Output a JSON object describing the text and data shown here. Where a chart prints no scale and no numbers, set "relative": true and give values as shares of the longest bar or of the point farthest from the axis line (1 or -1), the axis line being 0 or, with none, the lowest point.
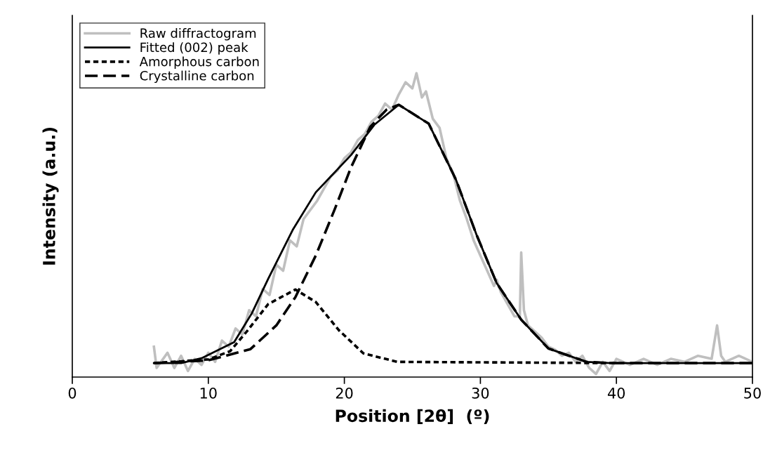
{
  "chart_data": {
    "type": "line",
    "relative": true,
    "xlabel": "Position [2θ]  (º)",
    "ylabel": "Intensity (a.u.)",
    "xlim": [
      0,
      50
    ],
    "xticks": [
      0,
      10,
      20,
      30,
      40,
      50
    ],
    "grid": false,
    "legend": "top left",
    "tick_labels": "x",
    "series": [
      {
        "name": "Raw diffractogram",
        "color": "#bfbfbf",
        "line_style": "solid",
        "x": [
          6,
          6.2,
          7,
          7.5,
          8,
          8.5,
          9,
          9.5,
          10,
          10.5,
          11,
          11.5,
          12,
          12.5,
          13,
          13.5,
          14,
          14.5,
          15,
          15.5,
          16,
          16.5,
          17,
          17.5,
          18,
          18.5,
          19,
          19.5,
          20,
          20.5,
          21,
          21.5,
          22,
          22.5,
          23,
          23.5,
          24,
          24.5,
          25,
          25.3,
          25.7,
          26,
          26.5,
          27,
          27.5,
          28,
          28.5,
          29,
          29.5,
          30,
          30.5,
          31,
          31.2,
          31.5,
          32,
          32.5,
          32.9,
          33.0,
          33.2,
          33.5,
          34,
          34.5,
          35,
          35.5,
          36,
          36.5,
          37,
          37.5,
          38,
          38.5,
          39,
          39.5,
          40,
          41,
          42,
          43,
          44,
          45,
          46,
          47,
          47.4,
          47.7,
          48,
          49,
          50
        ],
        "values": [
          0.1,
          0.03,
          0.08,
          0.03,
          0.07,
          0.02,
          0.06,
          0.04,
          0.08,
          0.05,
          0.12,
          0.1,
          0.16,
          0.14,
          0.22,
          0.2,
          0.29,
          0.27,
          0.37,
          0.35,
          0.45,
          0.43,
          0.52,
          0.55,
          0.58,
          0.62,
          0.66,
          0.68,
          0.72,
          0.74,
          0.78,
          0.8,
          0.84,
          0.86,
          0.9,
          0.88,
          0.93,
          0.97,
          0.95,
          1.0,
          0.92,
          0.94,
          0.85,
          0.82,
          0.72,
          0.67,
          0.58,
          0.52,
          0.45,
          0.4,
          0.35,
          0.3,
          0.32,
          0.28,
          0.24,
          0.2,
          0.2,
          0.41,
          0.22,
          0.17,
          0.15,
          0.13,
          0.1,
          0.09,
          0.07,
          0.08,
          0.05,
          0.07,
          0.03,
          0.01,
          0.05,
          0.02,
          0.06,
          0.04,
          0.06,
          0.04,
          0.06,
          0.05,
          0.07,
          0.06,
          0.17,
          0.07,
          0.05,
          0.07,
          0.05
        ]
      },
      {
        "name": "Fitted (002) peak",
        "color": "#000000",
        "line_style": "solid",
        "x": [
          6,
          8,
          9.5,
          11.9,
          13.2,
          14.4,
          16.2,
          17.9,
          20.5,
          22.2,
          24.0,
          26.2,
          28.2,
          29.7,
          31.2,
          33.0,
          35.0,
          37.8,
          39.6,
          50
        ],
        "values": [
          0.046,
          0.046,
          0.062,
          0.115,
          0.21,
          0.323,
          0.484,
          0.608,
          0.731,
          0.83,
          0.896,
          0.834,
          0.65,
          0.47,
          0.309,
          0.189,
          0.094,
          0.05,
          0.046,
          0.046
        ]
      },
      {
        "name": "Amorphous carbon",
        "color": "#000000",
        "line_style": "dotted",
        "x": [
          6,
          10,
          11.6,
          12.9,
          14.4,
          16.4,
          17.9,
          19.6,
          21.4,
          23.9,
          40
        ],
        "values": [
          0.046,
          0.058,
          0.085,
          0.154,
          0.24,
          0.288,
          0.247,
          0.154,
          0.078,
          0.05,
          0.046
        ]
      },
      {
        "name": "Crystalline carbon",
        "color": "#000000",
        "line_style": "dashed",
        "x": [
          6,
          10.0,
          13.1,
          15.0,
          16.4,
          17.9,
          19.3,
          20.5,
          21.9,
          23.1,
          24.0,
          26.2,
          28.2,
          29.7,
          31.2,
          33.0,
          35.0,
          37.8,
          39.6,
          50
        ],
        "values": [
          0.046,
          0.055,
          0.092,
          0.17,
          0.263,
          0.4,
          0.553,
          0.691,
          0.823,
          0.88,
          0.896,
          0.834,
          0.65,
          0.47,
          0.309,
          0.189,
          0.094,
          0.05,
          0.046,
          0.046
        ]
      }
    ]
  }
}
